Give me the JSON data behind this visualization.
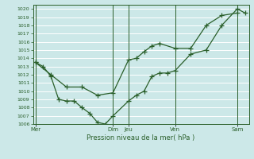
{
  "xlabel": "Pression niveau de la mer( hPa )",
  "bg_color": "#cce8e8",
  "grid_color": "#ffffff",
  "line_color": "#2a5f2a",
  "ylim": [
    1006,
    1020.5
  ],
  "yticks": [
    1006,
    1007,
    1008,
    1009,
    1010,
    1011,
    1012,
    1013,
    1014,
    1015,
    1016,
    1017,
    1018,
    1019,
    1020
  ],
  "day_labels": [
    "Mer",
    "Dim",
    "Jeu",
    "Ven",
    "Sam"
  ],
  "day_positions": [
    0,
    10,
    12,
    18,
    26
  ],
  "vline_positions": [
    0,
    10,
    12,
    18,
    26
  ],
  "xlim": [
    -0.3,
    27.5
  ],
  "series1_x": [
    0,
    1,
    2,
    3,
    4,
    5,
    6,
    7,
    8,
    9,
    10,
    12,
    13,
    14,
    15,
    16,
    17,
    18,
    20,
    22,
    24,
    26,
    27
  ],
  "series1_y": [
    1013.5,
    1013.0,
    1011.8,
    1009.0,
    1008.8,
    1008.8,
    1008.0,
    1007.3,
    1006.2,
    1006.0,
    1007.0,
    1008.8,
    1009.5,
    1010.0,
    1011.8,
    1012.2,
    1012.2,
    1012.5,
    1014.5,
    1015.0,
    1018.0,
    1020.0,
    1019.5
  ],
  "series2_x": [
    0,
    2,
    4,
    6,
    8,
    10,
    12,
    13,
    14,
    15,
    16,
    18,
    20,
    22,
    24,
    26
  ],
  "series2_y": [
    1013.5,
    1012.0,
    1010.5,
    1010.5,
    1009.5,
    1009.8,
    1013.8,
    1014.0,
    1014.8,
    1015.5,
    1015.8,
    1015.2,
    1015.2,
    1018.0,
    1019.2,
    1019.5
  ]
}
